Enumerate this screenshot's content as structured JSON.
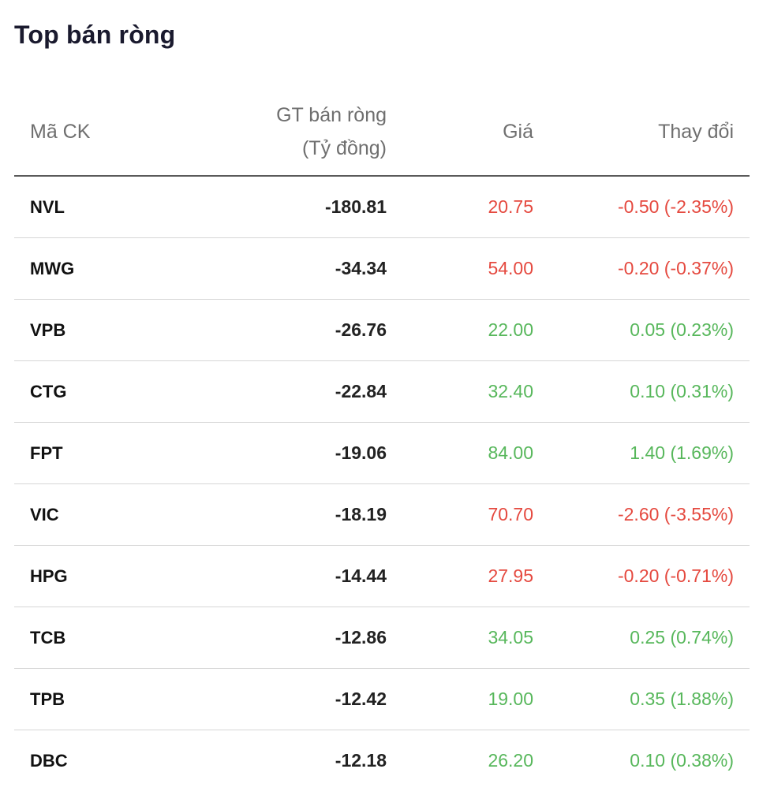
{
  "title": "Top bán ròng",
  "columns": {
    "ticker": "Mã CK",
    "net_value_line1": "GT bán ròng",
    "net_value_line2": "(Tỷ đồng)",
    "price": "Giá",
    "change": "Thay đổi"
  },
  "colors": {
    "down": "#e5493f",
    "up": "#57b75b"
  },
  "rows": [
    {
      "ticker": "NVL",
      "value": "-180.81",
      "price": "20.75",
      "change": "-0.50 (-2.35%)",
      "direction": "down"
    },
    {
      "ticker": "MWG",
      "value": "-34.34",
      "price": "54.00",
      "change": "-0.20 (-0.37%)",
      "direction": "down"
    },
    {
      "ticker": "VPB",
      "value": "-26.76",
      "price": "22.00",
      "change": "0.05 (0.23%)",
      "direction": "up"
    },
    {
      "ticker": "CTG",
      "value": "-22.84",
      "price": "32.40",
      "change": "0.10 (0.31%)",
      "direction": "up"
    },
    {
      "ticker": "FPT",
      "value": "-19.06",
      "price": "84.00",
      "change": "1.40 (1.69%)",
      "direction": "up"
    },
    {
      "ticker": "VIC",
      "value": "-18.19",
      "price": "70.70",
      "change": "-2.60 (-3.55%)",
      "direction": "down"
    },
    {
      "ticker": "HPG",
      "value": "-14.44",
      "price": "27.95",
      "change": "-0.20 (-0.71%)",
      "direction": "down"
    },
    {
      "ticker": "TCB",
      "value": "-12.86",
      "price": "34.05",
      "change": "0.25 (0.74%)",
      "direction": "up"
    },
    {
      "ticker": "TPB",
      "value": "-12.42",
      "price": "19.00",
      "change": "0.35 (1.88%)",
      "direction": "up"
    },
    {
      "ticker": "DBC",
      "value": "-12.18",
      "price": "26.20",
      "change": "0.10 (0.38%)",
      "direction": "up"
    }
  ]
}
